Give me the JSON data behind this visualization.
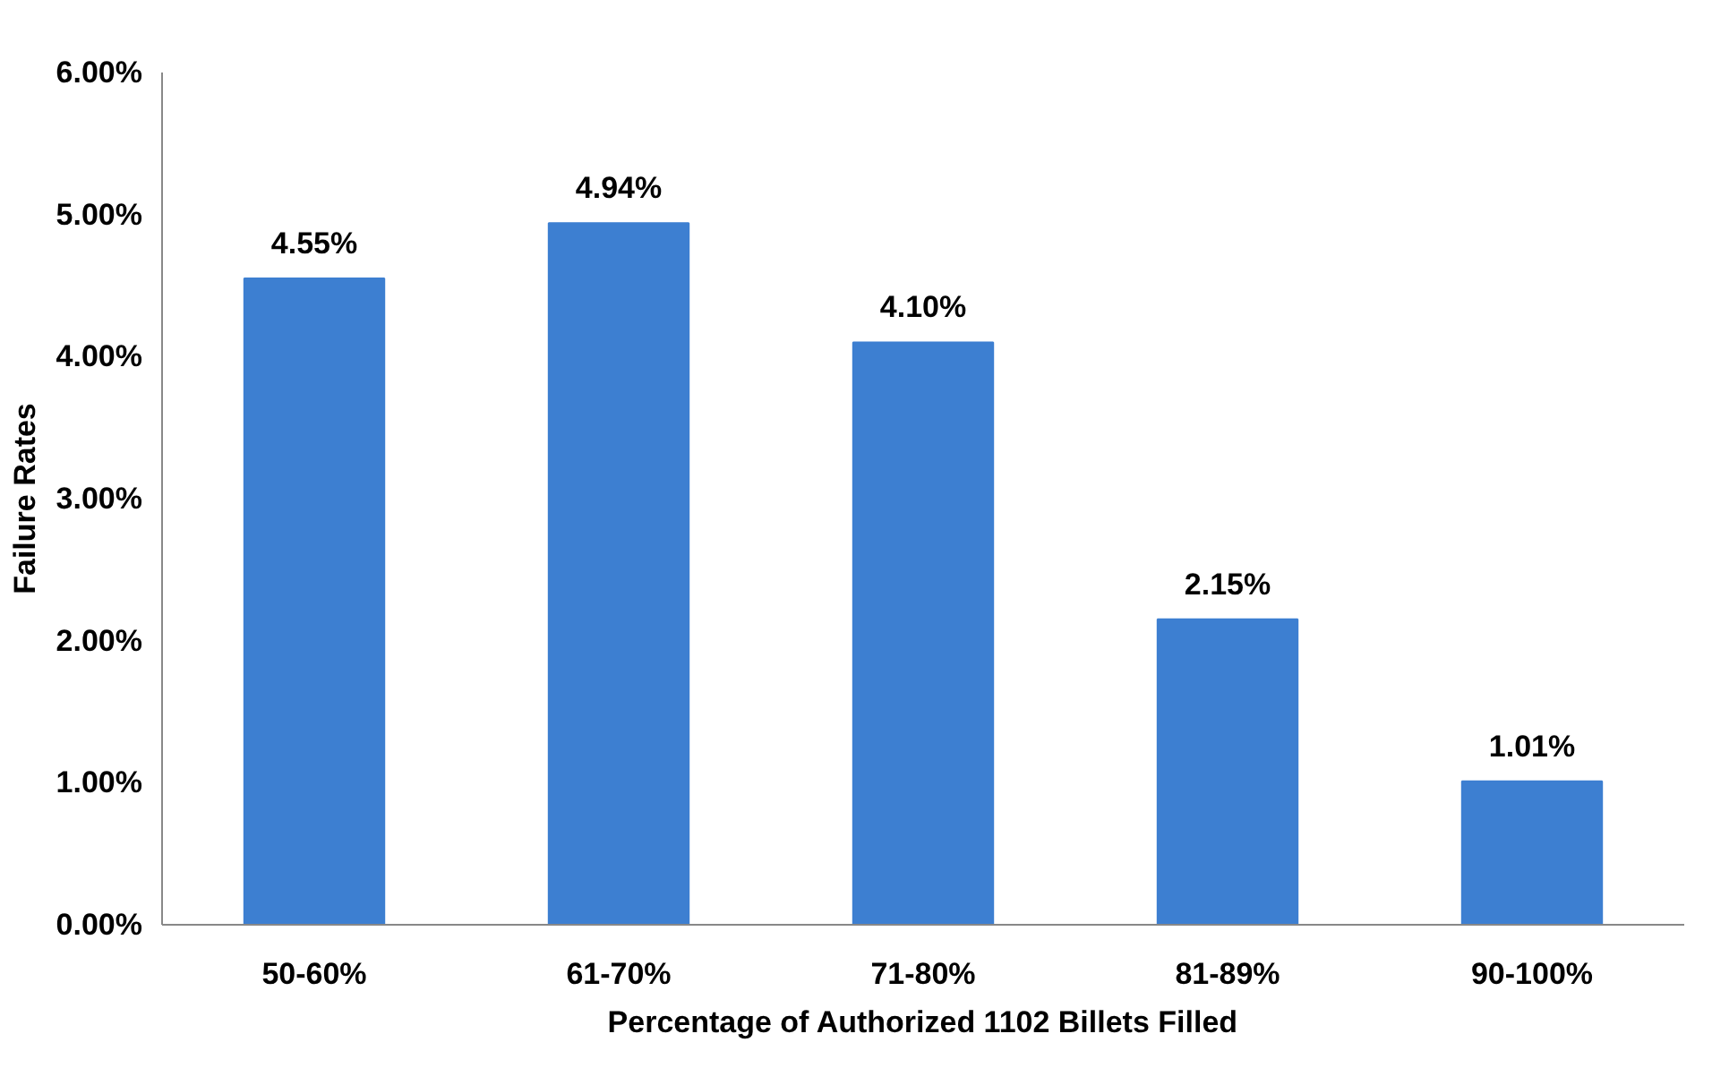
{
  "chart_data": {
    "type": "bar",
    "xlabel": "Percentage of Authorized 1102 Billets Filled",
    "ylabel": "Failure Rates",
    "categories": [
      "50-60%",
      "61-70%",
      "71-80%",
      "81-89%",
      "90-100%"
    ],
    "values": [
      4.55,
      4.94,
      4.1,
      2.15,
      1.01
    ],
    "value_labels": [
      "4.55%",
      "4.94%",
      "4.10%",
      "2.15%",
      "1.01%"
    ],
    "color": "#3d7fd1",
    "ylim": [
      0,
      6
    ],
    "yticks": [
      {
        "value": 0,
        "label": "0.00%"
      },
      {
        "value": 1,
        "label": "1.00%"
      },
      {
        "value": 2,
        "label": "2.00%"
      },
      {
        "value": 3,
        "label": "3.00%"
      },
      {
        "value": 4,
        "label": "4.00%"
      },
      {
        "value": 5,
        "label": "5.00%"
      },
      {
        "value": 6,
        "label": "6.00%"
      }
    ],
    "grid": false
  }
}
